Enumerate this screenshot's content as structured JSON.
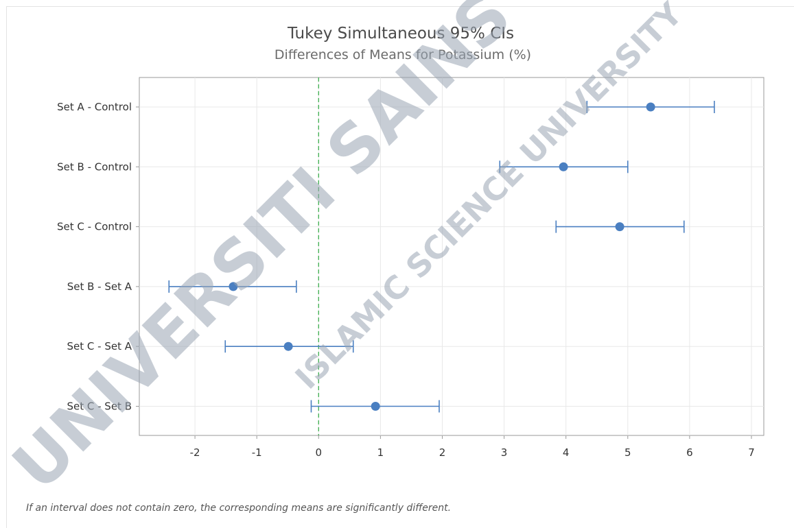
{
  "chart_data": {
    "type": "interval",
    "title": "Tukey Simultaneous 95% CIs",
    "subtitle": "Differences of Means for Potassium (%)",
    "xlim": [
      -2.9,
      7.2
    ],
    "xticks": [
      "-2",
      "-1",
      "0",
      "1",
      "2",
      "3",
      "4",
      "5",
      "6",
      "7"
    ],
    "reference_line": 0,
    "grid": true,
    "categories": [
      "Set A - Control",
      "Set B - Control",
      "Set C - Control",
      "Set B - Set A",
      "Set C - Set A",
      "Set C - Set B"
    ],
    "estimates": [
      5.37,
      3.96,
      4.87,
      -1.38,
      -0.49,
      0.92
    ],
    "lower": [
      4.34,
      2.93,
      3.84,
      -2.42,
      -1.51,
      -0.12
    ],
    "upper": [
      6.4,
      5.0,
      5.91,
      -0.36,
      0.56,
      1.95
    ],
    "footnote": "If an interval does not contain zero, the corresponding means are significantly different.",
    "colors": {
      "series": "#4a7fc1",
      "grid": "#e8e8e8",
      "axis": "#9a9a9a",
      "reference": "#3cad4e"
    }
  },
  "watermark": {
    "line1": "UNIVERSITI SAINS ISLAM MALAYSIA",
    "line2": "ISLAMIC SCIENCE UNIVERSITY"
  }
}
